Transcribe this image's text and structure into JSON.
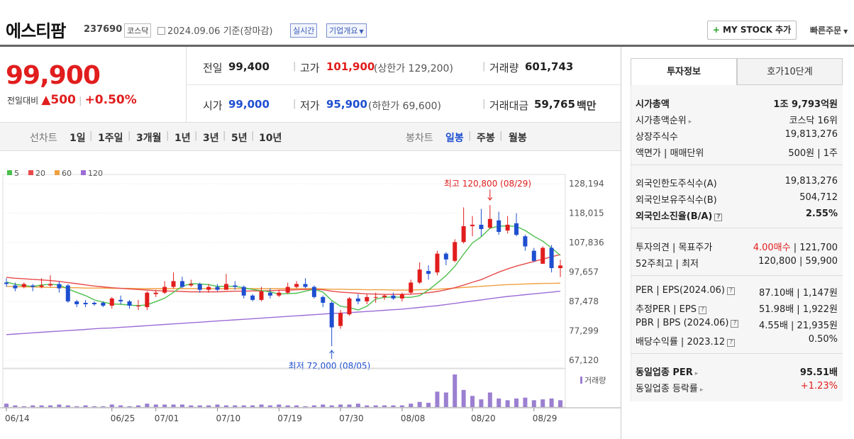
{
  "header": {
    "title": "에스티팜",
    "code": "237690",
    "market": "코스닥",
    "date": "2024.09.06  기준(장마감)",
    "realtime": "실시간",
    "overview": "기업개요",
    "mystock": "MY STOCK 추가",
    "quick_order": "빠른주문"
  },
  "price": {
    "current": "99,900",
    "change_label": "전일대비",
    "change": "500",
    "change_pct": "+0.50%"
  },
  "quotes": {
    "prev_label": "전일",
    "prev": "99,400",
    "high_label": "고가",
    "high": "101,900",
    "upper_limit": "(상한가 129,200)",
    "volume_label": "거래량",
    "volume": "601,743",
    "open_label": "시가",
    "open": "99,000",
    "low_label": "저가",
    "low": "95,900",
    "lower_limit": "(하한가 69,600)",
    "amount_label": "거래대금",
    "amount": "59,765",
    "amount_unit": "백만"
  },
  "period": {
    "line_label": "선차트",
    "line_opts": [
      "1일",
      "1주일",
      "3개월",
      "1년",
      "3년",
      "5년",
      "10년"
    ],
    "candle_label": "봉차트",
    "candle_opts": [
      "일봉",
      "주봉",
      "월봉"
    ]
  },
  "colors": {
    "up": "#e11d1d",
    "down": "#1f4fd0",
    "ma5": "#4cbf4c",
    "ma20": "#e84a4a",
    "ma60": "#f0a040",
    "ma120": "#9b6dd6",
    "volume": "#9b7fd0"
  },
  "chart_data": {
    "type": "candlestick",
    "legend": [
      "5",
      "20",
      "60",
      "120"
    ],
    "y_ticks": [
      "128,194",
      "118,015",
      "107,836",
      "97,657",
      "87,478",
      "77,299",
      "67,120"
    ],
    "ylim": [
      67120,
      128194
    ],
    "x_ticks": [
      "06/14",
      "06/25",
      "07/01",
      "07/10",
      "07/19",
      "07/30",
      "08/08",
      "08/20",
      "08/29"
    ],
    "high_annotation": "최고 120,800 (08/29)",
    "low_annotation": "최저 72,000 (08/05)",
    "volume_label": "거래량",
    "candles": [
      [
        94000,
        93500,
        95500,
        92500
      ],
      [
        93000,
        92000,
        94000,
        91000
      ],
      [
        92500,
        93500,
        94000,
        92000
      ],
      [
        93000,
        92500,
        93500,
        91000
      ],
      [
        92500,
        93000,
        95500,
        92000
      ],
      [
        93000,
        93500,
        96500,
        92500
      ],
      [
        93500,
        92000,
        94500,
        90500
      ],
      [
        93000,
        87500,
        93500,
        87000
      ],
      [
        87500,
        86500,
        88000,
        85500
      ],
      [
        87000,
        86500,
        88000,
        85500
      ],
      [
        87000,
        86500,
        87500,
        86000
      ],
      [
        87000,
        86000,
        87500,
        85500
      ],
      [
        86000,
        88500,
        89000,
        85000
      ],
      [
        88000,
        87500,
        89500,
        86500
      ],
      [
        87500,
        86000,
        88000,
        85000
      ],
      [
        86000,
        86000,
        88000,
        84500
      ],
      [
        85500,
        90500,
        91000,
        84500
      ],
      [
        90000,
        90500,
        91500,
        89000
      ],
      [
        90500,
        92500,
        94500,
        90000
      ],
      [
        92500,
        94500,
        97500,
        92000
      ],
      [
        94500,
        92500,
        96000,
        92000
      ],
      [
        93000,
        93500,
        95000,
        92500
      ],
      [
        93500,
        91500,
        94000,
        90500
      ],
      [
        91500,
        92500,
        93500,
        90500
      ],
      [
        92500,
        91500,
        93500,
        91000
      ],
      [
        91500,
        93500,
        97000,
        91500
      ],
      [
        93000,
        92500,
        94500,
        91500
      ],
      [
        92500,
        89500,
        93000,
        88500
      ],
      [
        89500,
        88000,
        90000,
        87500
      ],
      [
        88000,
        91000,
        92500,
        87500
      ],
      [
        90500,
        89500,
        92000,
        88500
      ],
      [
        89500,
        90500,
        91500,
        89000
      ],
      [
        90500,
        92500,
        94000,
        90000
      ],
      [
        92500,
        93500,
        94500,
        92000
      ],
      [
        93500,
        92500,
        95500,
        92000
      ],
      [
        92500,
        89000,
        93000,
        88500
      ],
      [
        89000,
        87000,
        89500,
        85500
      ],
      [
        87000,
        78500,
        87500,
        72000
      ],
      [
        79000,
        83500,
        84500,
        78000
      ],
      [
        83000,
        88500,
        89000,
        82500
      ],
      [
        88500,
        87500,
        90000,
        86500
      ],
      [
        87500,
        89000,
        90000,
        86500
      ],
      [
        89000,
        89000,
        90500,
        87000
      ],
      [
        89000,
        89500,
        90000,
        88000
      ],
      [
        89500,
        88500,
        90500,
        88000
      ],
      [
        88500,
        90000,
        90500,
        87500
      ],
      [
        90500,
        94000,
        95000,
        90000
      ],
      [
        94000,
        98500,
        101000,
        93500
      ],
      [
        98000,
        97000,
        100000,
        95000
      ],
      [
        97500,
        104000,
        105000,
        96500
      ],
      [
        104000,
        102000,
        104500,
        100000
      ],
      [
        101500,
        108000,
        109000,
        101000
      ],
      [
        108000,
        113500,
        120000,
        107500
      ],
      [
        113500,
        114000,
        117000,
        110000
      ],
      [
        114000,
        112500,
        119500,
        110000
      ],
      [
        113000,
        116000,
        120800,
        112500
      ],
      [
        115500,
        111500,
        118500,
        110500
      ],
      [
        112000,
        114000,
        117000,
        111000
      ],
      [
        114500,
        110500,
        118000,
        110000
      ],
      [
        110000,
        106500,
        110500,
        105000
      ],
      [
        105000,
        101500,
        106000,
        101000
      ],
      [
        100500,
        106000,
        106500,
        100500
      ],
      [
        106000,
        99000,
        107000,
        97500
      ],
      [
        99000,
        99900,
        101900,
        95900
      ]
    ],
    "volumes": [
      4,
      2,
      1,
      2,
      2,
      2,
      3,
      2,
      1,
      2,
      1,
      1,
      3,
      2,
      1,
      2,
      4,
      3,
      3,
      3,
      3,
      2,
      2,
      2,
      3,
      2,
      2,
      2,
      2,
      3,
      2,
      3,
      2,
      2,
      1,
      2,
      3,
      2,
      3,
      3,
      4,
      2,
      2,
      2,
      2,
      2,
      4,
      6,
      5,
      18,
      17,
      38,
      20,
      13,
      9,
      17,
      10,
      8,
      10,
      11,
      8,
      9,
      10,
      8
    ],
    "ma5": [
      94200,
      93400,
      93000,
      92600,
      93200,
      93400,
      93200,
      91800,
      90600,
      89500,
      88000,
      87200,
      86600,
      86500,
      86200,
      86000,
      86300,
      87400,
      88600,
      90600,
      92700,
      93600,
      93500,
      93300,
      92700,
      92700,
      92700,
      92200,
      91600,
      91200,
      90800,
      90000,
      90200,
      90300,
      91000,
      91700,
      90700,
      87800,
      85800,
      85400,
      84500,
      85800,
      88300,
      88900,
      89000,
      88900,
      88900,
      89500,
      91400,
      93800,
      96400,
      99600,
      103800,
      107700,
      109800,
      112800,
      113500,
      113600,
      113400,
      112000,
      110000,
      108300,
      106000,
      103400
    ],
    "ma20": [
      95800,
      95500,
      95300,
      95100,
      94900,
      94700,
      94400,
      94000,
      93600,
      93200,
      92800,
      92500,
      92200,
      92000,
      91800,
      91600,
      91400,
      91200,
      91100,
      91000,
      90900,
      90800,
      90800,
      90800,
      90800,
      90900,
      91000,
      91000,
      91100,
      91100,
      91200,
      91300,
      91400,
      91500,
      91600,
      91700,
      91500,
      91000,
      90700,
      90500,
      90300,
      90100,
      90000,
      89900,
      89900,
      89900,
      90000,
      90200,
      90500,
      90900,
      91500,
      92200,
      93100,
      94100,
      95000,
      96300,
      97600,
      98700,
      99700,
      100500,
      101300,
      102100,
      102900,
      103700
    ],
    "ma60": [
      92700,
      92600,
      92500,
      92500,
      92400,
      92300,
      92300,
      92200,
      92200,
      92100,
      92100,
      92100,
      92000,
      92000,
      92000,
      91900,
      91900,
      91900,
      91900,
      91900,
      91900,
      91900,
      91900,
      91900,
      91900,
      91900,
      91900,
      91900,
      91900,
      91900,
      91900,
      91900,
      91900,
      91900,
      91900,
      91900,
      91800,
      91700,
      91700,
      91600,
      91600,
      91500,
      91500,
      91500,
      91400,
      91400,
      91400,
      91500,
      91600,
      91700,
      91900,
      92100,
      92300,
      92500,
      92700,
      92900,
      93100,
      93300,
      93400,
      93500,
      93600,
      93700,
      93700,
      93800
    ],
    "ma120": [
      76000,
      76200,
      76400,
      76600,
      76800,
      77000,
      77200,
      77400,
      77600,
      77800,
      78000,
      78200,
      78300,
      78500,
      78700,
      78900,
      79100,
      79300,
      79500,
      79700,
      79900,
      80100,
      80300,
      80500,
      80700,
      80900,
      81100,
      81300,
      81500,
      81700,
      81900,
      82100,
      82300,
      82500,
      82700,
      82900,
      83100,
      83300,
      83400,
      83600,
      83800,
      84000,
      84200,
      84400,
      84600,
      84800,
      85100,
      85400,
      85700,
      86000,
      86400,
      86800,
      87200,
      87600,
      88000,
      88400,
      88800,
      89200,
      89500,
      89800,
      90100,
      90400,
      90700,
      91000
    ]
  },
  "tabs": {
    "info": "투자정보",
    "order": "호가10단계"
  },
  "invest": {
    "g1": [
      {
        "k": "시가총액",
        "v": "1조 9,793억원",
        "bold": true
      },
      {
        "k": "시가총액순위",
        "v": "코스닥 16위",
        "caret": true
      },
      {
        "k": "상장주식수",
        "v": "19,813,276"
      },
      {
        "k": "액면가 | 매매단위",
        "v": "500원 | 1주"
      }
    ],
    "g2": [
      {
        "k": "외국인한도주식수(A)",
        "v": "19,813,276"
      },
      {
        "k": "외국인보유주식수(B)",
        "v": "504,712"
      },
      {
        "k": "외국인소진율(B/A)",
        "v": "2.55%",
        "bold": true,
        "qm": true
      }
    ],
    "g3": [
      {
        "k": "투자의견 | 목표주가",
        "v_red": "4.00매수",
        "v": " | 121,700"
      },
      {
        "k": "52주최고 | 최저",
        "v": "120,800 | 59,900"
      }
    ],
    "g4": [
      {
        "k": "PER | EPS(2024.06)",
        "v": "87.10배 | 1,147원",
        "qm": true
      },
      {
        "k": "추정PER | EPS",
        "v": "51.98배 | 1,922원",
        "qm": true
      },
      {
        "k": "PBR | BPS (2024.06)",
        "v": "4.55배 | 21,935원",
        "qm": true
      },
      {
        "k": "배당수익률 | 2023.12",
        "v": "0.50%",
        "qm": true
      }
    ],
    "g5": [
      {
        "k": "동일업종 PER",
        "v": "95.51배",
        "bold": true,
        "caret": true
      },
      {
        "k": "동일업종 등락률",
        "v": "+1.23%",
        "red": true,
        "caret": true
      }
    ]
  }
}
